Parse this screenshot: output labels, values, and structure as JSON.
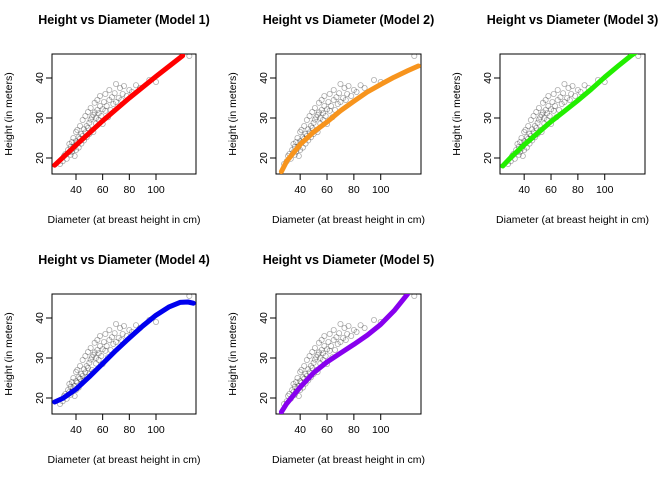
{
  "chart_data": [
    {
      "type": "scatter",
      "title": "Height vs Diameter (Model 1)",
      "xlabel": "Diameter (at breast height in cm)",
      "ylabel": "Height (in meters)",
      "xlim": [
        22,
        130
      ],
      "ylim": [
        16,
        46
      ],
      "x_ticks": [
        40,
        60,
        80,
        100
      ],
      "y_ticks": [
        20,
        30,
        40
      ],
      "fit_color": "#ff0000",
      "fit": {
        "x": [
          24,
          40,
          60,
          80,
          100,
          120
        ],
        "y": [
          18.2,
          23.2,
          29.3,
          35.0,
          40.4,
          45.6
        ]
      }
    },
    {
      "type": "scatter",
      "title": "Height vs Diameter (Model 2)",
      "xlabel": "Diameter (at breast height in cm)",
      "ylabel": "Height (in meters)",
      "xlim": [
        22,
        130
      ],
      "ylim": [
        16,
        46
      ],
      "x_ticks": [
        40,
        60,
        80,
        100
      ],
      "y_ticks": [
        20,
        30,
        40
      ],
      "fit_color": "#f7941d",
      "fit": {
        "x": [
          26,
          30,
          40,
          50,
          60,
          70,
          80,
          90,
          100,
          110,
          120,
          128
        ],
        "y": [
          16.6,
          19.2,
          23.4,
          26.5,
          29.0,
          31.8,
          34.2,
          36.5,
          38.4,
          40.2,
          41.8,
          43.0
        ]
      }
    },
    {
      "type": "scatter",
      "title": "Height vs Diameter (Model 3)",
      "xlabel": "Diameter (at breast height in cm)",
      "ylabel": "Height (in meters)",
      "xlim": [
        22,
        130
      ],
      "ylim": [
        16,
        46
      ],
      "x_ticks": [
        40,
        60,
        80,
        100
      ],
      "y_ticks": [
        20,
        30,
        40
      ],
      "fit_color": "#22ee00",
      "fit": {
        "x": [
          24,
          30,
          40,
          50,
          60,
          70,
          80,
          90,
          100,
          110,
          120,
          128
        ],
        "y": [
          18.0,
          20.1,
          23.3,
          26.2,
          29.1,
          31.7,
          34.4,
          37.2,
          40.2,
          43.0,
          45.7,
          47.5
        ]
      }
    },
    {
      "type": "scatter",
      "title": "Height vs Diameter (Model 4)",
      "xlabel": "Diameter (at breast height in cm)",
      "ylabel": "Height (in meters)",
      "xlim": [
        22,
        130
      ],
      "ylim": [
        16,
        46
      ],
      "x_ticks": [
        40,
        60,
        80,
        100
      ],
      "y_ticks": [
        20,
        30,
        40
      ],
      "fit_color": "#0000ee",
      "fit": {
        "x": [
          24,
          30,
          40,
          50,
          60,
          70,
          80,
          90,
          100,
          110,
          118,
          124,
          128
        ],
        "y": [
          19.0,
          19.9,
          22.2,
          25.3,
          28.6,
          31.9,
          35.0,
          38.0,
          40.7,
          42.8,
          43.9,
          44.0,
          43.7
        ]
      }
    },
    {
      "type": "scatter",
      "title": "Height vs Diameter (Model 5)",
      "xlabel": "Diameter (at breast height in cm)",
      "ylabel": "Height (in meters)",
      "xlim": [
        22,
        130
      ],
      "ylim": [
        16,
        46
      ],
      "x_ticks": [
        40,
        60,
        80,
        100
      ],
      "y_ticks": [
        20,
        30,
        40
      ],
      "fit_color": "#8800ee",
      "fit": {
        "x": [
          26,
          30,
          40,
          50,
          60,
          70,
          80,
          90,
          100,
          110,
          120
        ],
        "y": [
          16.5,
          18.6,
          22.7,
          26.3,
          29.0,
          31.2,
          33.4,
          35.7,
          38.4,
          41.8,
          46.0
        ]
      }
    }
  ],
  "shared_points": {
    "x": [
      28,
      30,
      31,
      32,
      33,
      34,
      35,
      35,
      36,
      36,
      37,
      37,
      38,
      38,
      39,
      39,
      40,
      40,
      40,
      41,
      41,
      42,
      42,
      43,
      43,
      44,
      44,
      45,
      45,
      46,
      46,
      47,
      47,
      48,
      48,
      49,
      49,
      50,
      50,
      51,
      51,
      52,
      52,
      53,
      53,
      54,
      54,
      55,
      55,
      56,
      56,
      57,
      57,
      58,
      58,
      59,
      60,
      60,
      61,
      62,
      62,
      63,
      64,
      65,
      65,
      66,
      67,
      68,
      69,
      70,
      70,
      72,
      73,
      74,
      75,
      76,
      78,
      80,
      82,
      85,
      88,
      95,
      100,
      125
    ],
    "y": [
      18.5,
      19.2,
      20.5,
      21.0,
      19.8,
      22.0,
      21.5,
      23.5,
      20.8,
      22.8,
      24.0,
      21.6,
      22.4,
      25.0,
      23.0,
      20.5,
      24.2,
      26.5,
      22.0,
      23.8,
      27.0,
      25.2,
      22.6,
      24.8,
      28.0,
      26.0,
      23.6,
      25.5,
      29.5,
      27.2,
      24.4,
      26.4,
      30.5,
      28.0,
      25.2,
      27.5,
      31.5,
      28.8,
      26.0,
      29.6,
      32.5,
      30.2,
      27.0,
      30.8,
      26.5,
      31.4,
      33.8,
      28.6,
      30.0,
      32.0,
      34.5,
      29.5,
      31.2,
      33.0,
      35.5,
      30.5,
      32.2,
      28.5,
      34.0,
      31.8,
      36.0,
      33.0,
      30.2,
      34.5,
      37.0,
      32.0,
      35.2,
      33.5,
      36.2,
      34.0,
      38.5,
      35.0,
      37.5,
      34.5,
      36.0,
      38.0,
      35.5,
      37.0,
      36.5,
      38.2,
      37.5,
      39.5,
      39.0,
      45.5
    ]
  }
}
